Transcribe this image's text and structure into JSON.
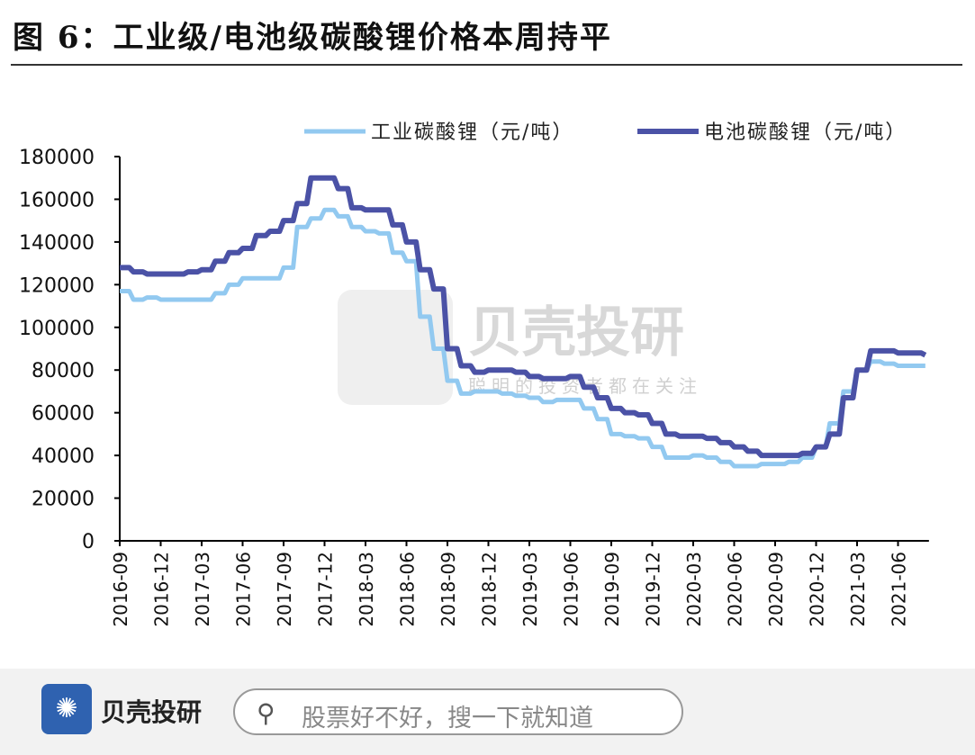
{
  "header": {
    "title": "图 6：工业级/电池级碳酸锂价格本周持平"
  },
  "watermark": {
    "brand": "贝壳投研",
    "slogan": "聪明的投资者都在关注"
  },
  "footer": {
    "brand": "贝壳投研",
    "search_placeholder": "股票好不好，搜一下就知道",
    "logo_icon": "shell-fan-icon",
    "search_icon": "magnifier-icon"
  },
  "chart_data": {
    "type": "line",
    "title": "",
    "xlabel": "",
    "ylabel": "",
    "ylim": [
      0,
      180000
    ],
    "yticks": [
      "0",
      "20000",
      "40000",
      "60000",
      "80000",
      "100000",
      "120000",
      "140000",
      "160000",
      "180000"
    ],
    "xticks": [
      "2016-09",
      "2016-12",
      "2017-03",
      "2017-06",
      "2017-09",
      "2017-12",
      "2018-03",
      "2018-06",
      "2018-09",
      "2018-12",
      "2019-03",
      "2019-06",
      "2019-09",
      "2019-12",
      "2020-03",
      "2020-06",
      "2020-09",
      "2020-12",
      "2021-03",
      "2021-06"
    ],
    "legend_position": "top",
    "grid": false,
    "x": [
      "2016-09",
      "2016-10",
      "2016-11",
      "2016-12",
      "2017-01",
      "2017-02",
      "2017-03",
      "2017-04",
      "2017-05",
      "2017-06",
      "2017-07",
      "2017-08",
      "2017-09",
      "2017-10",
      "2017-11",
      "2017-12",
      "2018-01",
      "2018-02",
      "2018-03",
      "2018-04",
      "2018-05",
      "2018-06",
      "2018-07",
      "2018-08",
      "2018-09",
      "2018-10",
      "2018-11",
      "2018-12",
      "2019-01",
      "2019-02",
      "2019-03",
      "2019-04",
      "2019-05",
      "2019-06",
      "2019-07",
      "2019-08",
      "2019-09",
      "2019-10",
      "2019-11",
      "2019-12",
      "2020-01",
      "2020-02",
      "2020-03",
      "2020-04",
      "2020-05",
      "2020-06",
      "2020-07",
      "2020-08",
      "2020-09",
      "2020-10",
      "2020-11",
      "2020-12",
      "2021-01",
      "2021-02",
      "2021-03",
      "2021-04",
      "2021-05",
      "2021-06",
      "2021-07",
      "2021-08"
    ],
    "series": [
      {
        "name": "工业碳酸锂（元/吨）",
        "color": "#92c9f0",
        "values": [
          117000,
          113000,
          114000,
          113000,
          113000,
          113000,
          113000,
          116000,
          120000,
          123000,
          123000,
          123000,
          128000,
          147000,
          151000,
          155000,
          152000,
          147000,
          145000,
          144000,
          135000,
          131000,
          105000,
          90000,
          75000,
          69000,
          70000,
          70000,
          69000,
          68000,
          67000,
          65000,
          66000,
          66000,
          62000,
          57000,
          50000,
          49000,
          48000,
          44000,
          39000,
          39000,
          40000,
          39000,
          37000,
          35000,
          35000,
          36000,
          36000,
          37000,
          39000,
          44000,
          55000,
          70000,
          80000,
          84000,
          83000,
          82000,
          82000,
          82000
        ]
      },
      {
        "name": "电池碳酸锂（元/吨）",
        "color": "#4b52a6",
        "values": [
          128000,
          126000,
          125000,
          125000,
          125000,
          126000,
          127000,
          131000,
          135000,
          137000,
          143000,
          145000,
          150000,
          158000,
          170000,
          170000,
          165000,
          156000,
          155000,
          155000,
          148000,
          140000,
          127000,
          118000,
          90000,
          82000,
          79000,
          80000,
          80000,
          79000,
          77000,
          76000,
          76000,
          77000,
          72000,
          67000,
          62000,
          60000,
          59000,
          55000,
          50000,
          49000,
          49000,
          48000,
          46000,
          44000,
          42000,
          40000,
          40000,
          40000,
          41000,
          44000,
          50000,
          67000,
          80000,
          89000,
          89000,
          88000,
          88000,
          87000
        ]
      }
    ]
  }
}
